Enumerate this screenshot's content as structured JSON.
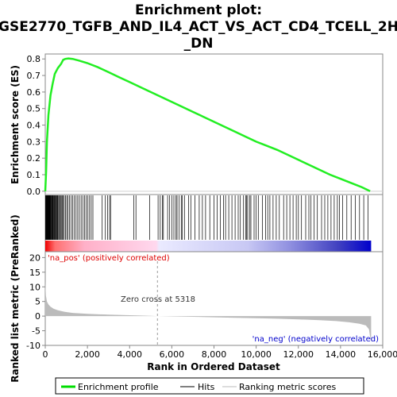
{
  "chart_data": {
    "type": "line",
    "title_lines": [
      "Enrichment plot:",
      "GSE2770_TGFB_AND_IL4_ACT_VS_ACT_CD4_TCELL_2H",
      "_DN"
    ],
    "es_panel": {
      "ylabel": "Enrichment score (ES)",
      "ylim": [
        -0.02,
        0.83
      ],
      "yticks": [
        0.0,
        0.1,
        0.2,
        0.3,
        0.4,
        0.5,
        0.6,
        0.7,
        0.8
      ],
      "ytick_labels": [
        "0.0",
        "0.1",
        "0.2",
        "0.3",
        "0.4",
        "0.5",
        "0.6",
        "0.7",
        "0.8"
      ],
      "curve": {
        "x": [
          0,
          40,
          80,
          150,
          250,
          350,
          450,
          600,
          750,
          850,
          950,
          1100,
          1300,
          1600,
          2000,
          2500,
          3000,
          3500,
          4000,
          4500,
          5000,
          5500,
          6000,
          6500,
          7000,
          7500,
          8000,
          8500,
          9000,
          9500,
          10000,
          10500,
          11000,
          11500,
          12000,
          12500,
          13000,
          13500,
          14000,
          14500,
          15000,
          15400
        ],
        "y": [
          0.0,
          0.12,
          0.3,
          0.46,
          0.58,
          0.65,
          0.71,
          0.745,
          0.77,
          0.795,
          0.8,
          0.803,
          0.8,
          0.79,
          0.775,
          0.75,
          0.72,
          0.69,
          0.66,
          0.63,
          0.6,
          0.57,
          0.54,
          0.51,
          0.48,
          0.45,
          0.42,
          0.39,
          0.36,
          0.33,
          0.3,
          0.275,
          0.25,
          0.22,
          0.19,
          0.16,
          0.13,
          0.1,
          0.075,
          0.05,
          0.025,
          0.0
        ]
      }
    },
    "hits_panel": {
      "hit_ranks": [
        15,
        30,
        45,
        60,
        75,
        90,
        105,
        120,
        135,
        150,
        165,
        180,
        200,
        220,
        240,
        260,
        280,
        300,
        320,
        345,
        370,
        395,
        420,
        450,
        480,
        510,
        540,
        570,
        600,
        640,
        680,
        720,
        760,
        800,
        850,
        900,
        960,
        1020,
        1080,
        1150,
        1220,
        1300,
        1380,
        1460,
        1540,
        1620,
        1700,
        1780,
        1860,
        1940,
        2020,
        2100,
        2180,
        2260,
        2700,
        2850,
        2950,
        3050,
        3100,
        4200,
        4300,
        4950,
        5350,
        5450,
        5550,
        5600,
        5800,
        5900,
        6000,
        6100,
        6200,
        6250,
        6350,
        6450,
        6500,
        6600,
        6800,
        6900,
        7100,
        7300,
        7450,
        7600,
        7800,
        8000,
        8150,
        8300,
        8450,
        8550,
        8700,
        8850,
        9000,
        9150,
        9250,
        9400,
        9500,
        9550,
        9600,
        9700,
        9750,
        9900,
        10000,
        10100,
        10300,
        10450,
        10550,
        10650,
        10800,
        10950,
        11100,
        11300,
        11450,
        11600,
        11750,
        11900,
        12000,
        12150,
        12350,
        12500,
        12600,
        12750,
        12900,
        13100,
        13250,
        13400,
        13550,
        13700,
        13850,
        13950,
        14100,
        14300,
        14500,
        14700,
        14900,
        15100,
        15300
      ]
    },
    "metric_panel": {
      "ylabel": "Ranked list metric (PreRanked)",
      "ylim": [
        -10,
        22
      ],
      "yticks": [
        -10,
        -5,
        0,
        5,
        10,
        15,
        20
      ],
      "ytick_labels": [
        "-10",
        "-5",
        "0",
        "5",
        "10",
        "15",
        "20"
      ],
      "curve": {
        "x": [
          0,
          30,
          80,
          150,
          250,
          400,
          600,
          900,
          1300,
          2000,
          3000,
          4000,
          5000,
          5318,
          6000,
          7000,
          8000,
          9000,
          10000,
          11000,
          12000,
          13000,
          13800,
          14400,
          14900,
          15200,
          15350,
          15400,
          15450
        ],
        "y": [
          12,
          7,
          5,
          4,
          3.2,
          2.5,
          2.0,
          1.5,
          1.1,
          0.8,
          0.5,
          0.3,
          0.1,
          0.0,
          -0.1,
          -0.25,
          -0.4,
          -0.55,
          -0.7,
          -0.9,
          -1.1,
          -1.4,
          -1.7,
          -2.1,
          -2.6,
          -3.2,
          -4.5,
          -7.0,
          -8.8
        ]
      },
      "zero_cross_rank": 5318,
      "zero_cross_label": "Zero cross at 5318",
      "pos_label": "'na_pos' (positively correlated)",
      "neg_label": "'na_neg' (negatively correlated)"
    },
    "xaxis": {
      "xlabel": "Rank in Ordered Dataset",
      "xlim": [
        0,
        16000
      ],
      "xticks": [
        0,
        2000,
        4000,
        6000,
        8000,
        10000,
        12000,
        14000,
        16000
      ],
      "xtick_labels": [
        "0",
        "2,000",
        "4,000",
        "6,000",
        "8,000",
        "10,000",
        "12,000",
        "14,000",
        "16,000"
      ],
      "n_ranks": 15450
    },
    "legend": {
      "placement": "bottom",
      "entries": [
        {
          "label": "Enrichment profile",
          "color": "#00dd00"
        },
        {
          "label": "Hits",
          "color": "#000000"
        },
        {
          "label": "Ranking metric scores",
          "color": "#bbbbbb"
        }
      ]
    },
    "colors": {
      "es_line": "#22ee22",
      "pos_label": "#dd0000",
      "neg_label": "#0000cc",
      "metric_fill": "#bbbbbb",
      "frame": "#888888"
    }
  }
}
